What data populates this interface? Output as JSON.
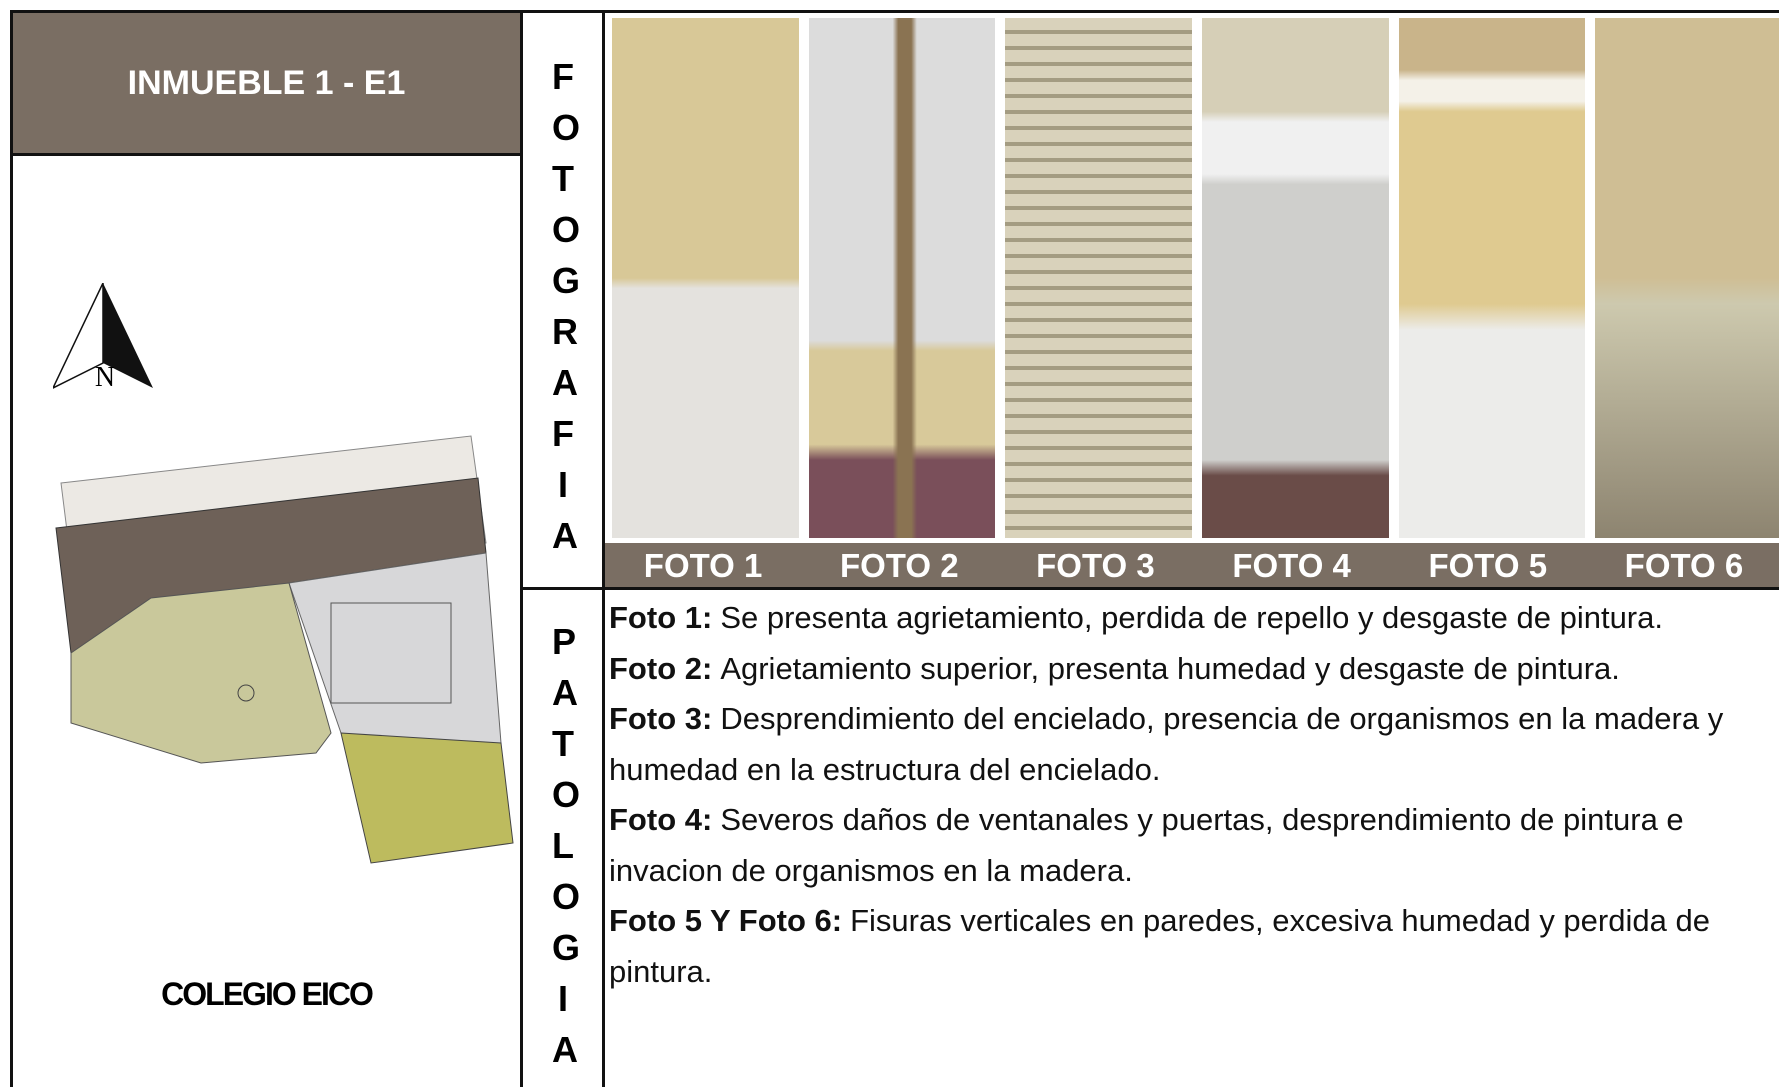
{
  "header": {
    "title": "INMUEBLE 1 - E1"
  },
  "site": {
    "north_label": "N",
    "name": "COLEGIO EICO"
  },
  "photos": {
    "section_label": "FOTOGRAFIA",
    "labels": [
      "FOTO 1",
      "FOTO 2",
      "FOTO 3",
      "FOTO 4",
      "FOTO 5",
      "FOTO 6"
    ]
  },
  "pathology": {
    "section_label": "PATOLOGIA",
    "items": [
      {
        "lead": "Foto 1:",
        "text": "Se presenta agrietamiento, perdida de repello y desgaste de pintura."
      },
      {
        "lead": "Foto 2:",
        "text": "Agrietamiento superior, presenta humedad y desgaste de pintura."
      },
      {
        "lead": "Foto 3:",
        "text": "Desprendimiento del encielado, presencia de organismos en la madera y humedad en la estructura del encielado."
      },
      {
        "lead": "Foto 4:",
        "text": "Severos daños de ventanales y puertas, desprendimiento de pintura e invacion de organismos en la madera."
      },
      {
        "lead": "Foto 5 Y Foto 6:",
        "text": "Fisuras verticales en paredes, excesiva humedad y perdida de pintura."
      }
    ]
  }
}
